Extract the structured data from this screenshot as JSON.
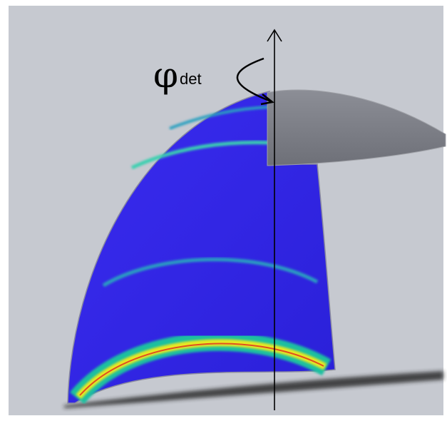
{
  "label": {
    "symbol": "φ",
    "subscript": "det"
  }
}
